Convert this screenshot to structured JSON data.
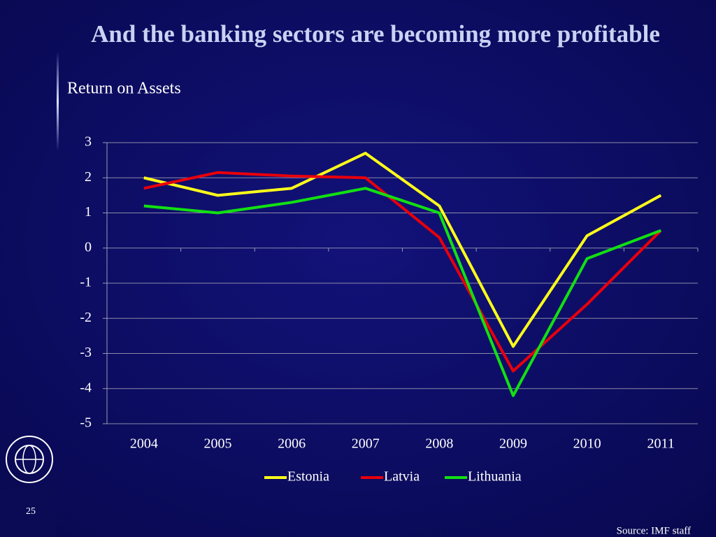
{
  "title": "And the banking sectors are becoming more profitable",
  "page_number": "25",
  "source": "Source: IMF staff",
  "chart_data": {
    "type": "line",
    "subtitle": "Return on Assets",
    "categories": [
      "2004",
      "2005",
      "2006",
      "2007",
      "2008",
      "2009",
      "2010",
      "2011"
    ],
    "series": [
      {
        "name": "Estonia",
        "color": "#ffff1a",
        "values": [
          2.0,
          1.5,
          1.7,
          2.7,
          1.2,
          -2.8,
          0.35,
          1.5
        ]
      },
      {
        "name": "Latvia",
        "color": "#e8000b",
        "values": [
          1.7,
          2.15,
          2.05,
          2.0,
          0.3,
          -3.5,
          -1.6,
          0.5
        ]
      },
      {
        "name": "Lithuania",
        "color": "#12e012",
        "values": [
          1.2,
          1.0,
          1.3,
          1.7,
          1.0,
          -4.2,
          -0.3,
          0.5
        ]
      }
    ],
    "ylim": [
      -5,
      3
    ],
    "yticks": [
      -5,
      -4,
      -3,
      -2,
      -1,
      0,
      1,
      2,
      3
    ],
    "grid": true,
    "legend": "bottom"
  }
}
